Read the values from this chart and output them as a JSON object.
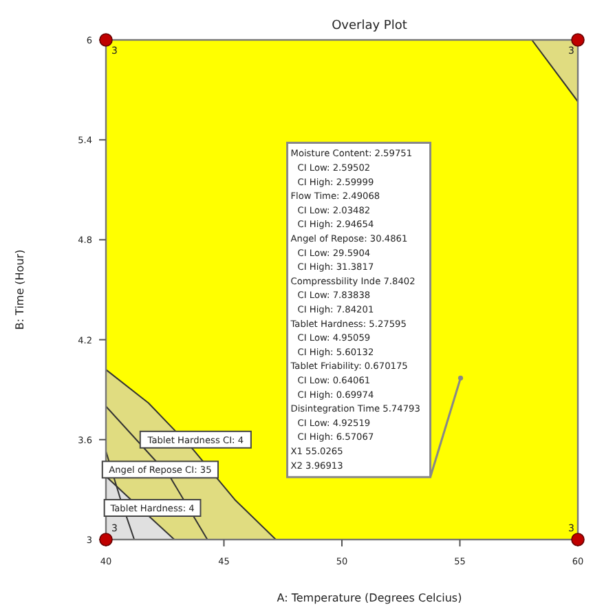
{
  "chart_data": {
    "type": "line",
    "title": "Overlay Plot",
    "xlabel": "A: Temperature (Degrees Celcius)",
    "ylabel": "B: Time (Hour)",
    "xlim": [
      40,
      60
    ],
    "ylim": [
      3,
      6
    ],
    "xticks": [
      40,
      45,
      50,
      55,
      60
    ],
    "yticks": [
      3,
      3.6,
      4.2,
      4.8,
      5.4,
      6
    ],
    "bands": [
      {
        "axis": "y",
        "from": 3,
        "to": 6,
        "color": "#ffff00"
      }
    ],
    "series": [
      {
        "color": "#333333",
        "x": [
          58.05,
          60
        ],
        "values": [
          6,
          5.63
        ],
        "lower": [
          6,
          5.63
        ],
        "upper": [
          6,
          6
        ]
      },
      {
        "type": "area",
        "color": "#e0dc80",
        "x": [
          40,
          41.8,
          43.7,
          45.46,
          47.2
        ],
        "values": [
          4.02,
          3.82,
          3.54,
          3.24,
          3
        ]
      },
      {
        "color": "#333333",
        "x": [
          40,
          42.7,
          44.3
        ],
        "values": [
          3.8,
          3.38,
          3
        ]
      },
      {
        "type": "area",
        "color": "#e0e0e0",
        "x": [
          40,
          40.9,
          42.9
        ],
        "values": [
          3.38,
          3.26,
          3
        ]
      },
      {
        "color": "#333333",
        "x": [
          40,
          40.6,
          41.2
        ],
        "values": [
          3.53,
          3.25,
          3
        ]
      },
      {
        "type": "scatter",
        "color": "#c00000",
        "marker": "circle",
        "x": [
          40,
          40,
          60,
          60
        ],
        "values": [
          3,
          6,
          3,
          6
        ]
      },
      {
        "type": "scatter",
        "color": "#888888",
        "marker": "circle",
        "x": [
          55.03
        ],
        "values": [
          3.97
        ]
      }
    ],
    "annotations": [
      "Tablet Hardness CI: 4",
      "Angel of Repose CI: 35",
      "Tablet Hardness: 4",
      "Moisture Content: 2.59751",
      "CI Low: 2.59502",
      "CI High: 2.59999",
      "Flow Time: 2.49068",
      "CI Low: 2.03482",
      "CI High: 2.94654",
      "Angel of Repose: 30.4861",
      "CI Low: 29.5904",
      "CI High: 31.3817",
      "Compressbility Inde 7.8402",
      "CI Low: 7.83838",
      "CI High: 7.84201",
      "Tablet Hardness: 5.27595",
      "CI Low: 4.95059",
      "CI High: 5.60132",
      "Tablet Friability: 0.670175",
      "CI Low: 0.64061",
      "CI High: 0.69974",
      "Disintegration Time 5.74793",
      "CI Low: 4.92519",
      "CI High: 6.57067",
      "X1 55.0265",
      "X2 3.96913",
      "3",
      "3",
      "3",
      "3"
    ]
  }
}
